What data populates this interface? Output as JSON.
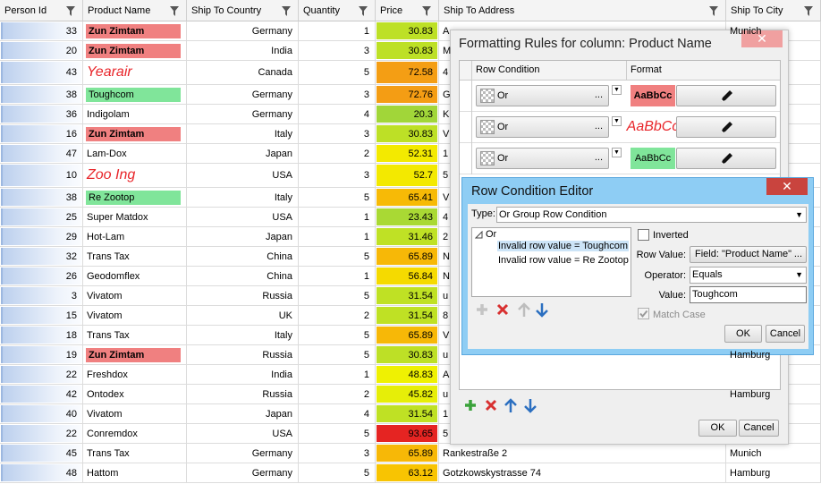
{
  "grid": {
    "columns": [
      "Person Id",
      "Product Name",
      "Ship To Country",
      "Quantity",
      "Price",
      "Ship To Address",
      "Ship To City"
    ],
    "rows": [
      [
        33,
        "Zun Zimtam",
        "Germany",
        1,
        30.83,
        "A",
        "Munich"
      ],
      [
        20,
        "Zun Zimtam",
        "India",
        3,
        30.83,
        "M",
        null
      ],
      [
        43,
        "Yearair",
        "Canada",
        5,
        72.58,
        "4",
        null
      ],
      [
        38,
        "Toughcom",
        "Germany",
        3,
        72.76,
        "G",
        null
      ],
      [
        36,
        "Indigolam",
        "Germany",
        4,
        20.3,
        "K",
        null
      ],
      [
        16,
        "Zun Zimtam",
        "Italy",
        3,
        30.83,
        "V",
        null
      ],
      [
        47,
        "Lam-Dox",
        "Japan",
        2,
        52.31,
        "1",
        null
      ],
      [
        10,
        "Zoo Ing",
        "USA",
        3,
        52.7,
        "5",
        null
      ],
      [
        38,
        "Re Zootop",
        "Italy",
        5,
        65.41,
        "V",
        null
      ],
      [
        25,
        "Super Matdox",
        "USA",
        1,
        23.43,
        "4",
        null
      ],
      [
        29,
        "Hot-Lam",
        "Japan",
        1,
        31.46,
        "2",
        null
      ],
      [
        32,
        "Trans Tax",
        "China",
        5,
        65.89,
        "N",
        null
      ],
      [
        26,
        "Geodomflex",
        "China",
        1,
        56.84,
        "N",
        null
      ],
      [
        3,
        "Vivatom",
        "Russia",
        5,
        31.54,
        "u",
        null
      ],
      [
        15,
        "Vivatom",
        "UK",
        2,
        31.54,
        "8",
        null
      ],
      [
        18,
        "Trans Tax",
        "Italy",
        5,
        65.89,
        "V",
        null
      ],
      [
        19,
        "Zun Zimtam",
        "Russia",
        5,
        30.83,
        "u",
        "Hamburg"
      ],
      [
        22,
        "Freshdox",
        "India",
        1,
        48.83,
        "A",
        null
      ],
      [
        42,
        "Ontodex",
        "Russia",
        2,
        45.82,
        "u",
        "Hamburg"
      ],
      [
        40,
        "Vivatom",
        "Japan",
        4,
        31.54,
        "1",
        null
      ],
      [
        22,
        "Conremdox",
        "USA",
        5,
        93.65,
        "5",
        null
      ],
      [
        45,
        "Trans Tax",
        "Germany",
        3,
        65.89,
        "Rankestraße 2",
        "Munich"
      ],
      [
        48,
        "Hattom",
        "Germany",
        5,
        63.12,
        "Gotzkowskystrasse 74",
        "Hamburg"
      ]
    ]
  },
  "rules_dialog": {
    "title": "Formatting Rules for column: Product Name",
    "columns": [
      "Row Condition",
      "Format"
    ],
    "rules": [
      {
        "condition": "Or",
        "more": "...",
        "format": "AaBbCc"
      },
      {
        "condition": "Or",
        "more": "...",
        "format": "AaBbCc"
      },
      {
        "condition": "Or",
        "more": "...",
        "format": "AaBbCc"
      }
    ],
    "ok": "OK",
    "cancel": "Cancel"
  },
  "editor": {
    "title": "Row Condition Editor",
    "type_label": "Type:",
    "type": "Or Group Row Condition",
    "tree": {
      "root": "Or",
      "children": [
        "Invalid row value = Toughcom",
        "Invalid row value = Re Zootop"
      ]
    },
    "inverted": "Inverted",
    "row_value_label": "Row Value:",
    "row_value": "Field: \"Product Name\"",
    "row_value_more": "...",
    "operator_label": "Operator:",
    "operator": "Equals",
    "value_label": "Value:",
    "value": "Toughcom",
    "match_case": "Match Case",
    "ok": "OK",
    "cancel": "Cancel"
  }
}
